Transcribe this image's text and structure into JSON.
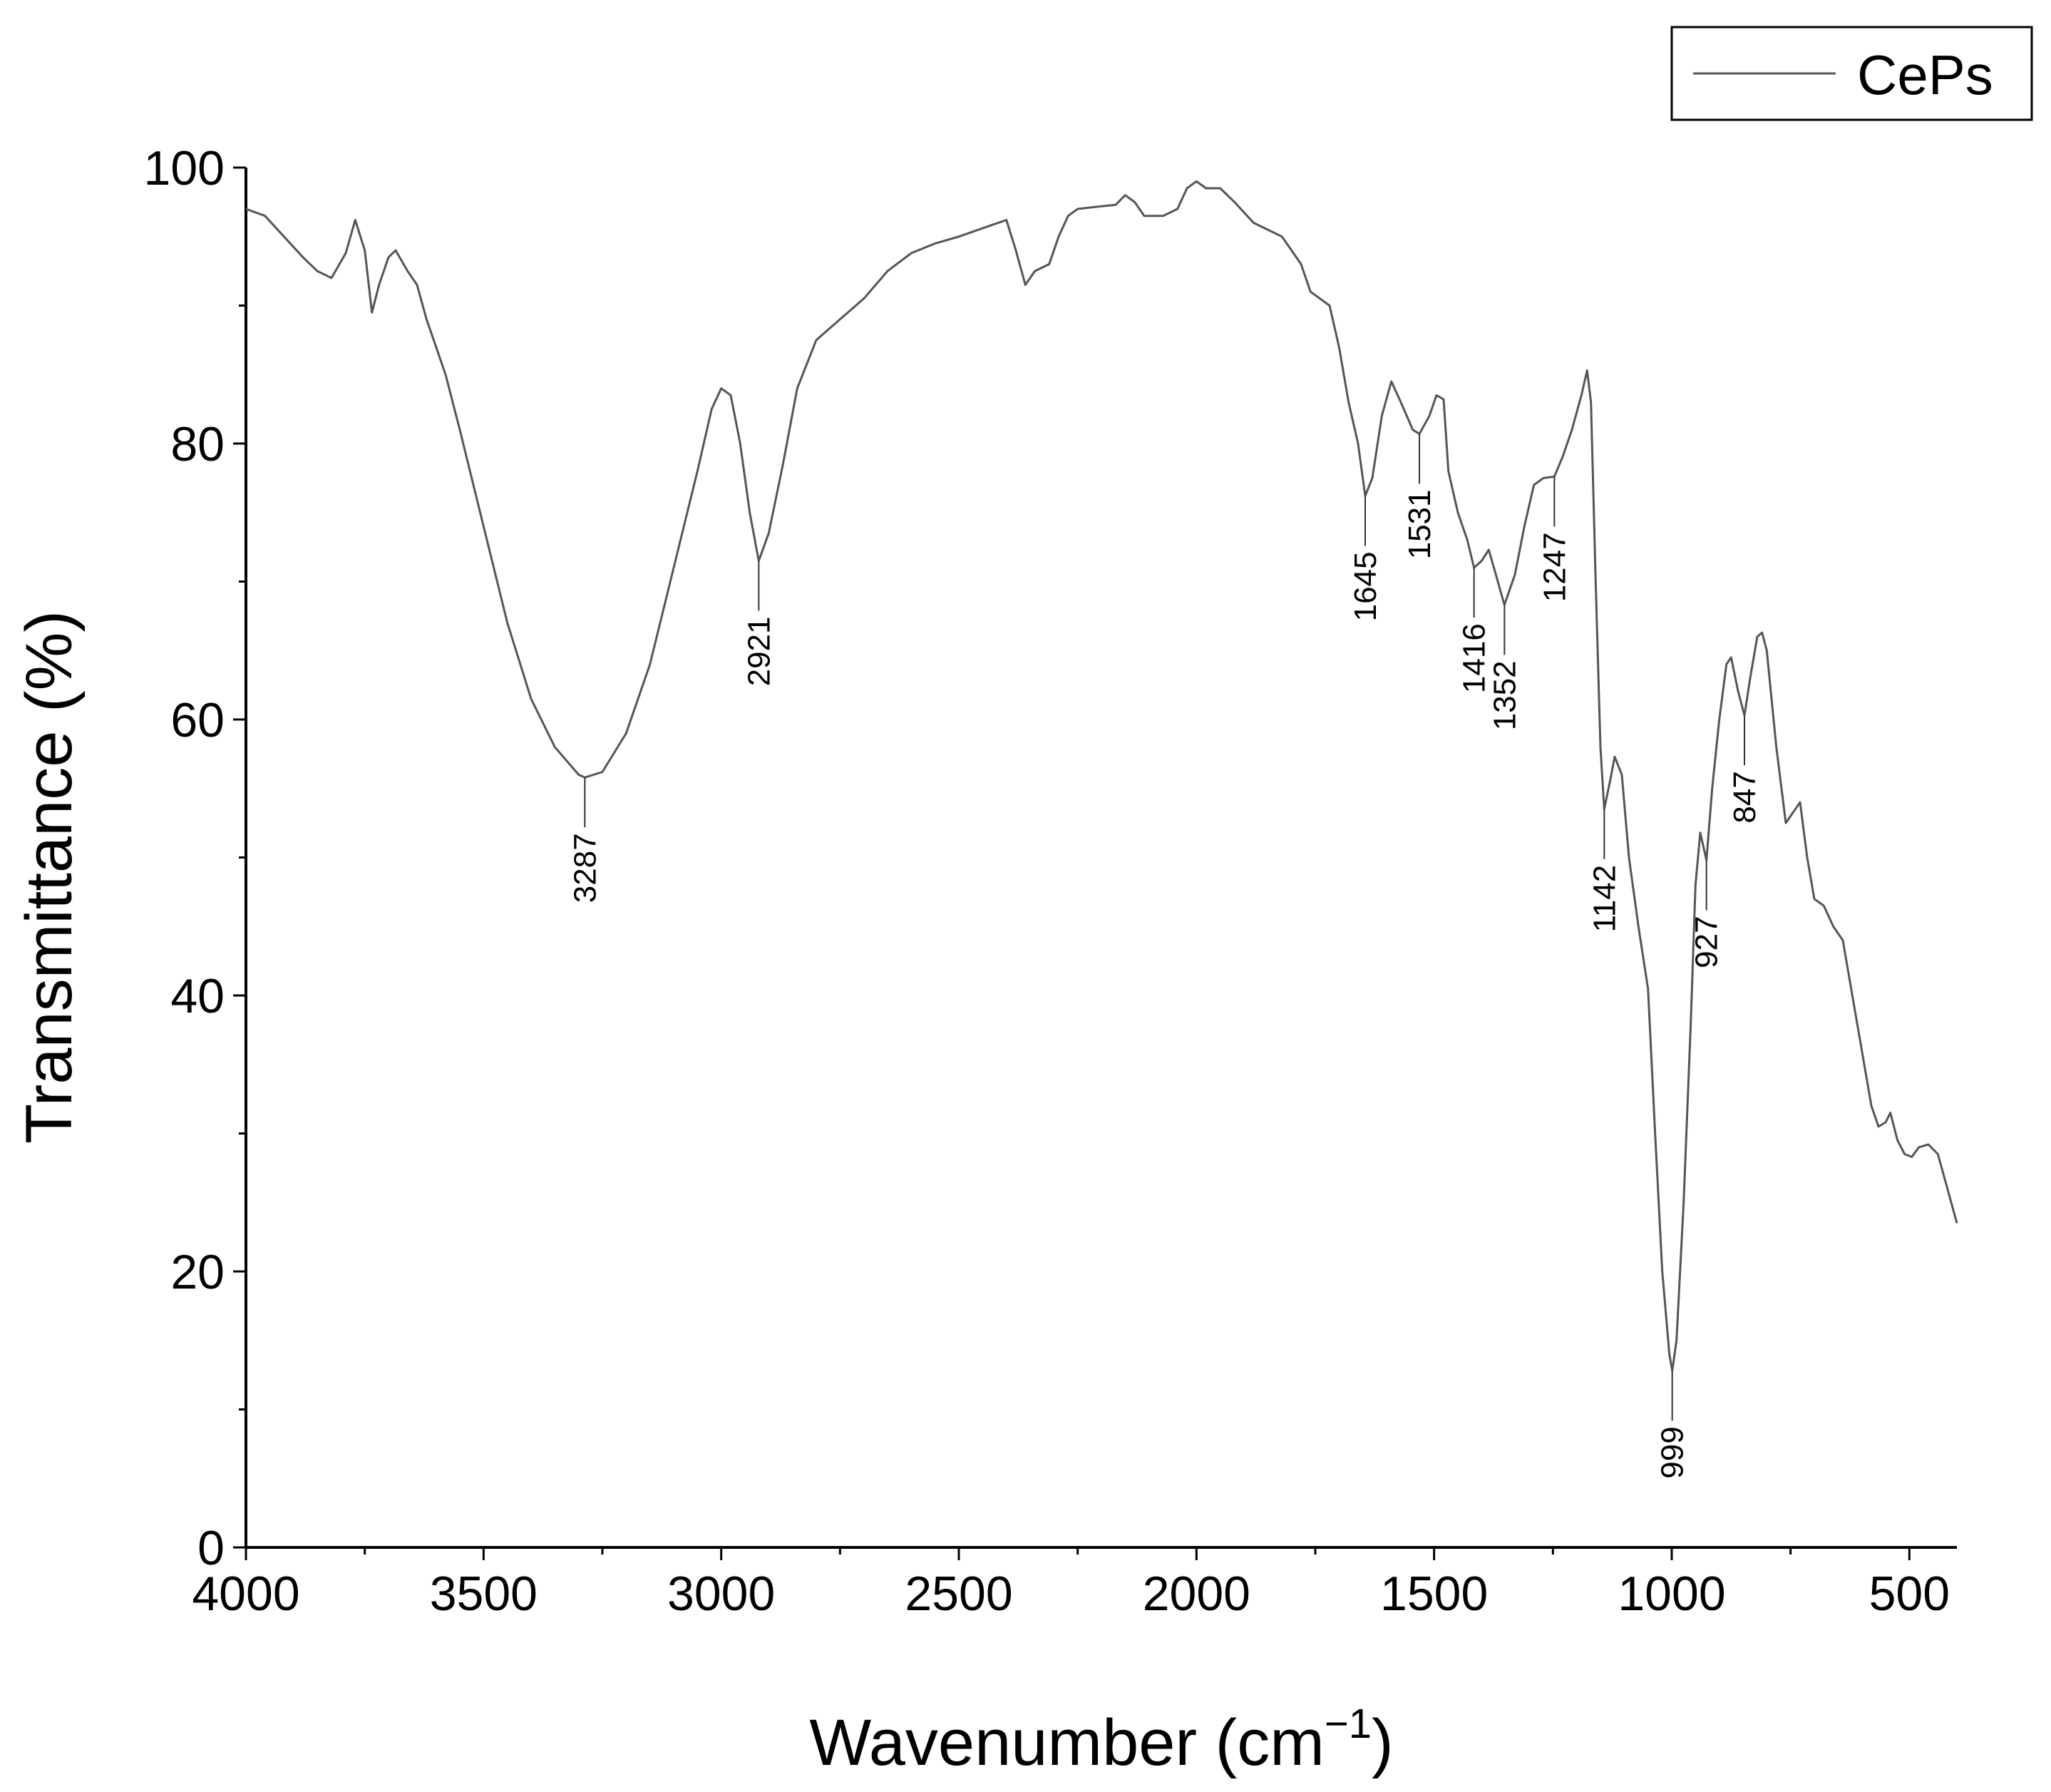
{
  "chart_data": {
    "type": "line",
    "xlabel": "Wavenumber (cm",
    "xlabel_superscript": "−1",
    "xlabel_suffix": ")",
    "ylabel": "Transmittance (%)",
    "xlim": [
      4000,
      400
    ],
    "ylim": [
      0,
      100
    ],
    "x_reversed": true,
    "x_ticks": [
      4000,
      3500,
      3000,
      2500,
      2000,
      1500,
      1000,
      500
    ],
    "y_ticks": [
      0,
      20,
      40,
      60,
      80,
      100
    ],
    "grid": false,
    "legend_position": "top-right",
    "series": [
      {
        "name": "CePs",
        "color": "#555555",
        "points": [
          [
            4000,
            97.0
          ],
          [
            3960,
            96.5
          ],
          [
            3920,
            95.0
          ],
          [
            3880,
            93.5
          ],
          [
            3850,
            92.5
          ],
          [
            3820,
            92.0
          ],
          [
            3790,
            93.8
          ],
          [
            3770,
            96.2
          ],
          [
            3750,
            94.0
          ],
          [
            3735,
            89.5
          ],
          [
            3720,
            91.5
          ],
          [
            3700,
            93.5
          ],
          [
            3685,
            94.0
          ],
          [
            3660,
            92.5
          ],
          [
            3640,
            91.5
          ],
          [
            3620,
            89.0
          ],
          [
            3600,
            87.0
          ],
          [
            3580,
            85.0
          ],
          [
            3550,
            81.0
          ],
          [
            3500,
            74.0
          ],
          [
            3450,
            67.0
          ],
          [
            3400,
            61.5
          ],
          [
            3350,
            58.0
          ],
          [
            3300,
            56.0
          ],
          [
            3287,
            55.8
          ],
          [
            3250,
            56.2
          ],
          [
            3200,
            59.0
          ],
          [
            3150,
            64.0
          ],
          [
            3100,
            71.0
          ],
          [
            3050,
            78.0
          ],
          [
            3020,
            82.5
          ],
          [
            3000,
            84.0
          ],
          [
            2980,
            83.5
          ],
          [
            2960,
            80.0
          ],
          [
            2940,
            75.0
          ],
          [
            2921,
            71.5
          ],
          [
            2900,
            73.5
          ],
          [
            2870,
            78.5
          ],
          [
            2840,
            84.0
          ],
          [
            2800,
            87.5
          ],
          [
            2750,
            89.0
          ],
          [
            2700,
            90.5
          ],
          [
            2650,
            92.5
          ],
          [
            2600,
            93.8
          ],
          [
            2550,
            94.5
          ],
          [
            2500,
            95.0
          ],
          [
            2450,
            95.6
          ],
          [
            2400,
            96.2
          ],
          [
            2380,
            94.0
          ],
          [
            2360,
            91.5
          ],
          [
            2340,
            92.5
          ],
          [
            2310,
            93.0
          ],
          [
            2290,
            95.0
          ],
          [
            2270,
            96.5
          ],
          [
            2250,
            97.0
          ],
          [
            2200,
            97.2
          ],
          [
            2170,
            97.3
          ],
          [
            2150,
            98.0
          ],
          [
            2130,
            97.5
          ],
          [
            2110,
            96.5
          ],
          [
            2070,
            96.5
          ],
          [
            2040,
            97.0
          ],
          [
            2020,
            98.5
          ],
          [
            2000,
            99.0
          ],
          [
            1980,
            98.5
          ],
          [
            1950,
            98.5
          ],
          [
            1920,
            97.5
          ],
          [
            1880,
            96.0
          ],
          [
            1850,
            95.5
          ],
          [
            1820,
            95.0
          ],
          [
            1800,
            94.0
          ],
          [
            1780,
            93.0
          ],
          [
            1760,
            91.0
          ],
          [
            1740,
            90.5
          ],
          [
            1720,
            90.0
          ],
          [
            1700,
            87.0
          ],
          [
            1680,
            83.0
          ],
          [
            1660,
            80.0
          ],
          [
            1645,
            76.2
          ],
          [
            1630,
            77.5
          ],
          [
            1610,
            82.0
          ],
          [
            1590,
            84.5
          ],
          [
            1570,
            83.0
          ],
          [
            1545,
            81.0
          ],
          [
            1531,
            80.7
          ],
          [
            1510,
            82.0
          ],
          [
            1495,
            83.5
          ],
          [
            1480,
            83.2
          ],
          [
            1470,
            78.0
          ],
          [
            1450,
            75.0
          ],
          [
            1430,
            73.0
          ],
          [
            1416,
            71.0
          ],
          [
            1400,
            71.5
          ],
          [
            1385,
            72.3
          ],
          [
            1370,
            70.5
          ],
          [
            1352,
            68.3
          ],
          [
            1330,
            70.5
          ],
          [
            1310,
            74.0
          ],
          [
            1290,
            77.0
          ],
          [
            1270,
            77.5
          ],
          [
            1247,
            77.6
          ],
          [
            1230,
            79.0
          ],
          [
            1210,
            81.0
          ],
          [
            1190,
            83.5
          ],
          [
            1178,
            85.3
          ],
          [
            1170,
            83.0
          ],
          [
            1160,
            70.0
          ],
          [
            1150,
            58.0
          ],
          [
            1142,
            53.5
          ],
          [
            1130,
            55.5
          ],
          [
            1120,
            57.3
          ],
          [
            1105,
            56.0
          ],
          [
            1090,
            50.0
          ],
          [
            1070,
            45.0
          ],
          [
            1050,
            40.5
          ],
          [
            1035,
            30.0
          ],
          [
            1020,
            20.0
          ],
          [
            1005,
            14.0
          ],
          [
            999,
            12.8
          ],
          [
            990,
            15.0
          ],
          [
            975,
            25.0
          ],
          [
            960,
            38.0
          ],
          [
            950,
            48.0
          ],
          [
            940,
            51.8
          ],
          [
            927,
            49.8
          ],
          [
            915,
            55.0
          ],
          [
            900,
            60.0
          ],
          [
            885,
            64.0
          ],
          [
            875,
            64.5
          ],
          [
            860,
            62.0
          ],
          [
            847,
            60.3
          ],
          [
            835,
            63.0
          ],
          [
            820,
            66.0
          ],
          [
            810,
            66.3
          ],
          [
            800,
            65.0
          ],
          [
            780,
            58.0
          ],
          [
            760,
            52.5
          ],
          [
            740,
            53.5
          ],
          [
            730,
            54.0
          ],
          [
            715,
            50.0
          ],
          [
            700,
            47.0
          ],
          [
            680,
            46.5
          ],
          [
            660,
            45.0
          ],
          [
            640,
            44.0
          ],
          [
            620,
            40.0
          ],
          [
            600,
            36.0
          ],
          [
            580,
            32.0
          ],
          [
            565,
            30.5
          ],
          [
            550,
            30.8
          ],
          [
            540,
            31.5
          ],
          [
            525,
            29.5
          ],
          [
            510,
            28.5
          ],
          [
            495,
            28.3
          ],
          [
            480,
            29.0
          ],
          [
            460,
            29.2
          ],
          [
            440,
            28.5
          ],
          [
            420,
            26.0
          ],
          [
            400,
            23.5
          ]
        ]
      }
    ],
    "peaks": [
      {
        "label": "3287",
        "x": 3287,
        "y": 55.8
      },
      {
        "label": "2921",
        "x": 2921,
        "y": 71.5
      },
      {
        "label": "1645",
        "x": 1645,
        "y": 76.2
      },
      {
        "label": "1531",
        "x": 1531,
        "y": 80.7
      },
      {
        "label": "1416",
        "x": 1416,
        "y": 71.0
      },
      {
        "label": "1352",
        "x": 1352,
        "y": 68.3
      },
      {
        "label": "1247",
        "x": 1247,
        "y": 77.6
      },
      {
        "label": "1142",
        "x": 1142,
        "y": 53.5
      },
      {
        "label": "999",
        "x": 999,
        "y": 12.8
      },
      {
        "label": "927",
        "x": 927,
        "y": 49.8
      },
      {
        "label": "847",
        "x": 847,
        "y": 60.3
      }
    ]
  }
}
